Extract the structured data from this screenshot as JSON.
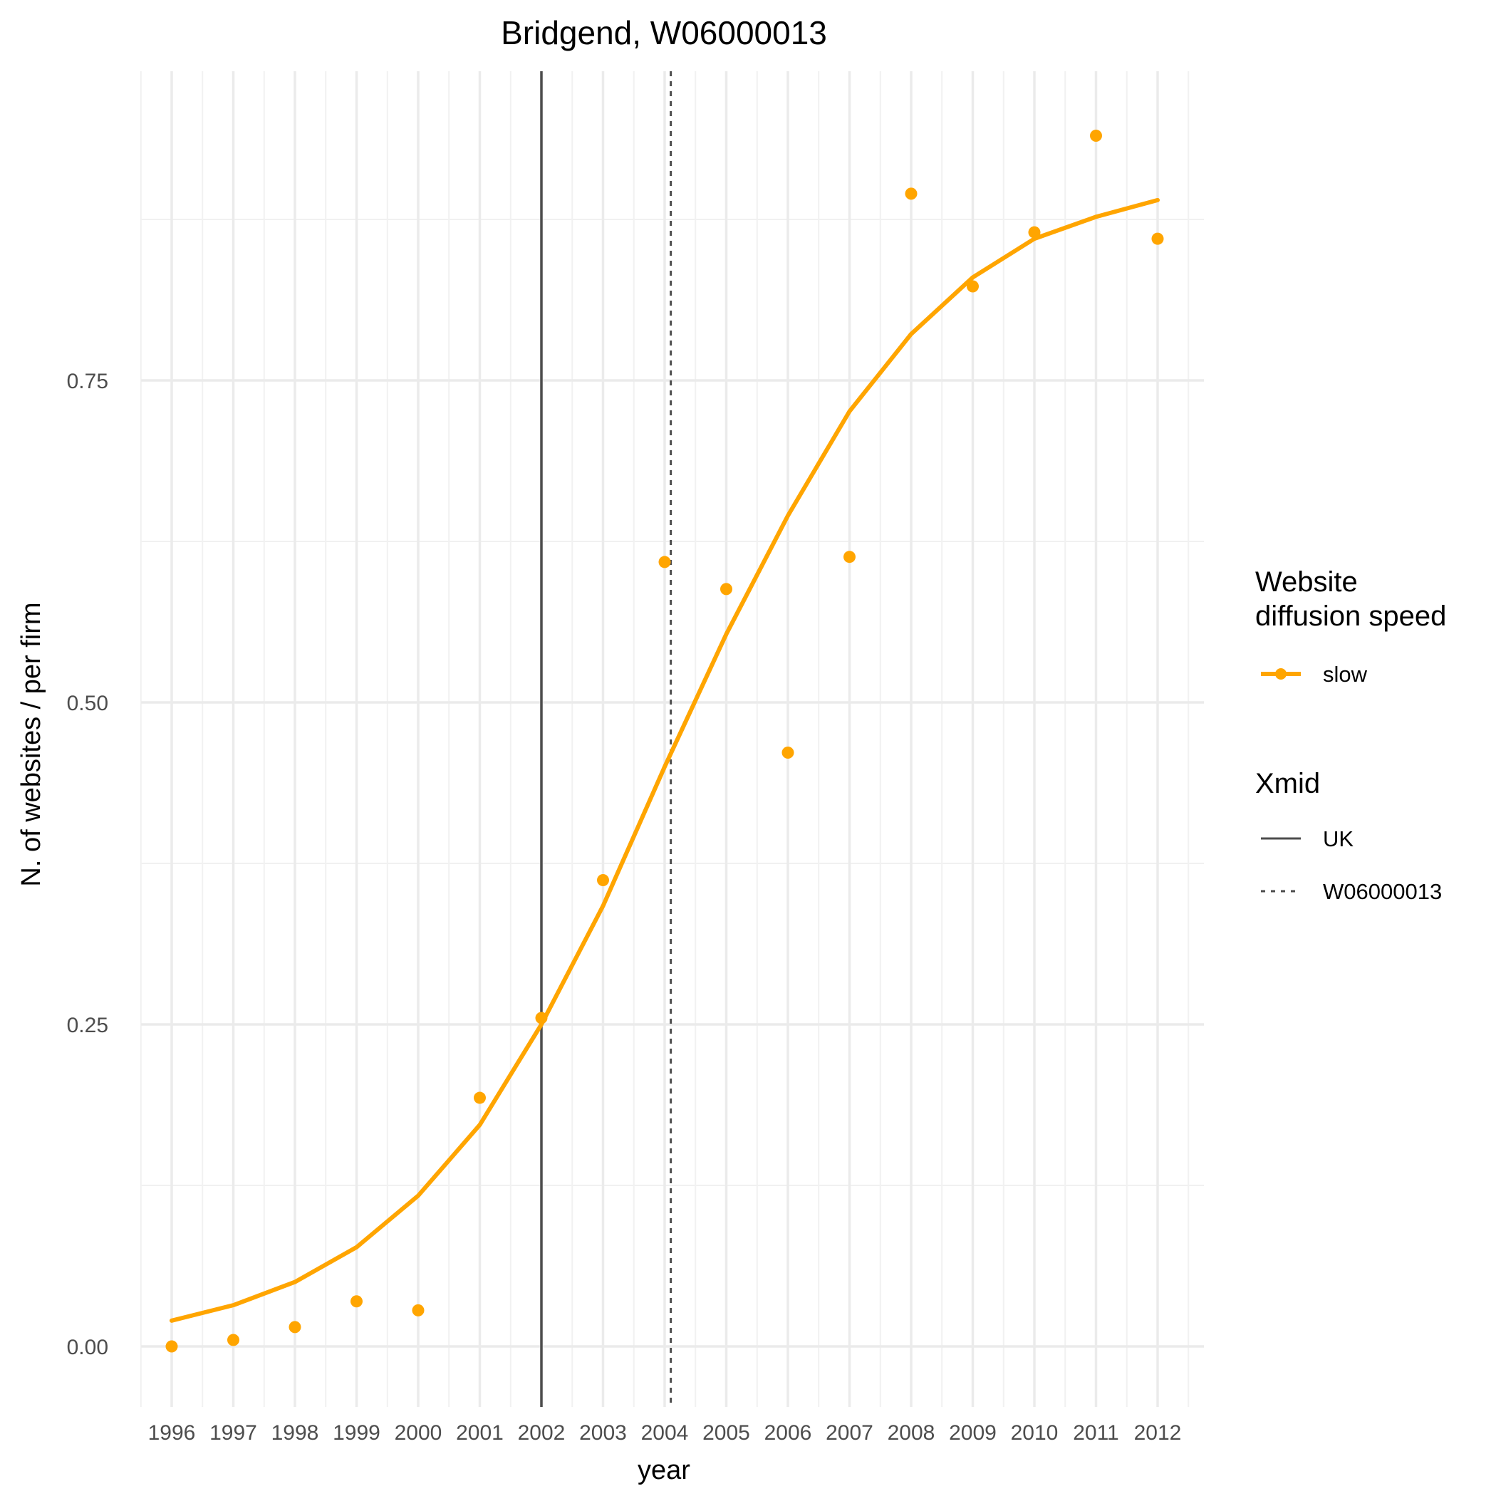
{
  "chart_data": {
    "type": "scatter",
    "title": "Bridgend, W06000013",
    "xlabel": "year",
    "ylabel": "N. of websites / per firm",
    "x_ticks": [
      "1996",
      "1997",
      "1998",
      "1999",
      "2000",
      "2001",
      "2002",
      "2003",
      "2004",
      "2005",
      "2006",
      "2007",
      "2008",
      "2009",
      "2010",
      "2011",
      "2012"
    ],
    "y_ticks": [
      "0.00",
      "0.25",
      "0.50",
      "0.75"
    ],
    "y_tick_values": [
      0,
      0.25,
      0.5,
      0.75
    ],
    "xlim": [
      1995.5,
      2012.5
    ],
    "ylim": [
      -0.045,
      0.985
    ],
    "grid": true,
    "legend_placement": "right",
    "series": [
      {
        "name": "slow",
        "color": "#FFA500",
        "points": {
          "x": [
            1996,
            1997,
            1998,
            1999,
            2000,
            2001,
            2002,
            2003,
            2004,
            2005,
            2006,
            2007,
            2008,
            2009,
            2010,
            2011,
            2012
          ],
          "y": [
            0.0,
            0.005,
            0.015,
            0.035,
            0.028,
            0.193,
            0.255,
            0.362,
            0.609,
            0.588,
            0.461,
            0.613,
            0.895,
            0.823,
            0.865,
            0.94,
            0.86
          ]
        },
        "fit": {
          "x": [
            1996,
            1997,
            1998,
            1999,
            2000,
            2001,
            2002,
            2003,
            2004,
            2005,
            2006,
            2007,
            2008,
            2009,
            2010,
            2011,
            2012
          ],
          "y": [
            0.02,
            0.032,
            0.05,
            0.077,
            0.117,
            0.172,
            0.25,
            0.342,
            0.45,
            0.553,
            0.645,
            0.726,
            0.786,
            0.83,
            0.86,
            0.877,
            0.89
          ]
        }
      }
    ],
    "vlines": [
      {
        "name": "UK",
        "x": 2002,
        "linetype": "solid",
        "color": "#4d4d4d"
      },
      {
        "name": "W06000013",
        "x": 2004.1,
        "linetype": "dotted",
        "color": "#4d4d4d"
      }
    ],
    "legend": {
      "color_title": "Website\ndiffusion speed",
      "color_title_lines": [
        "Website",
        "diffusion speed"
      ],
      "color_items": [
        {
          "label": "slow",
          "color": "#FFA500"
        }
      ],
      "linetype_title": "Xmid",
      "linetype_items": [
        {
          "label": "UK",
          "linetype": "solid"
        },
        {
          "label": "W06000013",
          "linetype": "dotted"
        }
      ]
    }
  }
}
